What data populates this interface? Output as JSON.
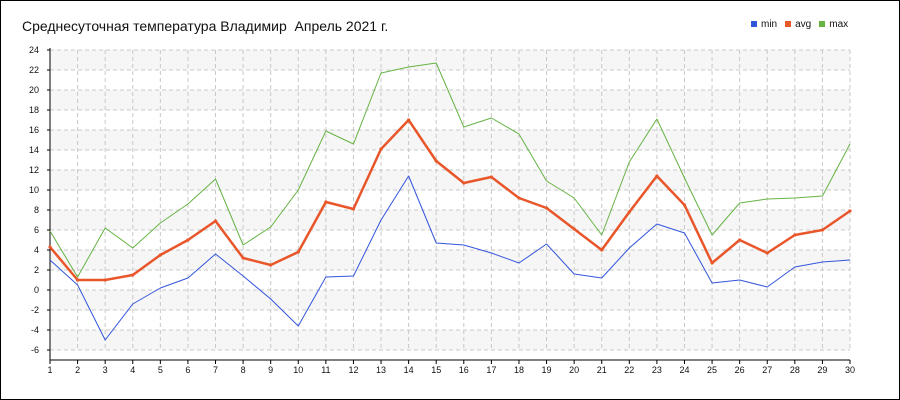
{
  "chart_data": {
    "type": "line",
    "title": "Среднесуточная температура Владимир  Апрель 2021 г.",
    "xlabel": "",
    "ylabel": "",
    "x": [
      1,
      2,
      3,
      4,
      5,
      6,
      7,
      8,
      9,
      10,
      11,
      12,
      13,
      14,
      15,
      16,
      17,
      18,
      19,
      20,
      21,
      22,
      23,
      24,
      25,
      26,
      27,
      28,
      29,
      30
    ],
    "xlim": [
      1,
      30
    ],
    "ylim": [
      -6,
      24
    ],
    "y_ticks": [
      -6,
      -4,
      -2,
      0,
      2,
      4,
      6,
      8,
      10,
      12,
      14,
      16,
      18,
      20,
      22,
      24
    ],
    "grid": true,
    "legend_position": "top-right",
    "series": [
      {
        "name": "min",
        "color": "#3355dd",
        "values": [
          3.0,
          0.5,
          -5.0,
          -1.4,
          0.2,
          1.2,
          3.6,
          1.4,
          -0.9,
          -3.6,
          1.3,
          1.4,
          7.0,
          11.4,
          4.7,
          4.5,
          3.7,
          2.7,
          4.6,
          1.6,
          1.2,
          4.2,
          6.6,
          5.7,
          0.7,
          1.0,
          0.3,
          2.3,
          2.8,
          3.0
        ]
      },
      {
        "name": "avg",
        "color": "#e8562a",
        "values": [
          4.3,
          1.0,
          1.0,
          1.5,
          3.5,
          5.0,
          6.9,
          3.2,
          2.5,
          3.8,
          8.8,
          8.1,
          14.1,
          17.0,
          12.9,
          10.7,
          11.3,
          9.2,
          8.2,
          6.1,
          4.0,
          7.8,
          11.4,
          8.5,
          2.7,
          5.0,
          3.7,
          5.5,
          6.0,
          7.9
        ]
      },
      {
        "name": "max",
        "color": "#66b344",
        "values": [
          5.9,
          1.3,
          6.2,
          4.2,
          6.7,
          8.6,
          11.1,
          4.5,
          6.3,
          10.0,
          15.9,
          14.6,
          21.7,
          22.3,
          22.7,
          16.3,
          17.2,
          15.6,
          10.9,
          9.2,
          5.5,
          12.8,
          17.1,
          11.2,
          5.5,
          8.7,
          9.1,
          9.2,
          9.4,
          14.6
        ]
      }
    ]
  }
}
